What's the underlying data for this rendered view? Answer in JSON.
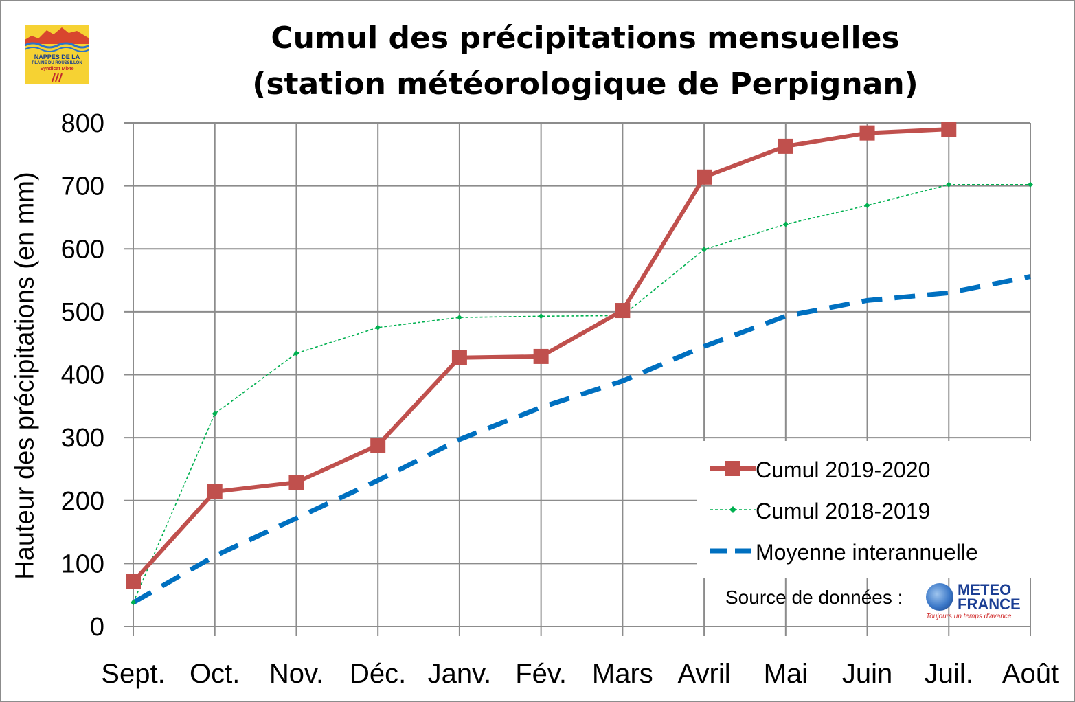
{
  "logo_nappes": {
    "line1": "NAPPES DE LA",
    "line2": "PLAINE DU ROUSSILLON",
    "line3": "Syndicat Mixte",
    "colors": {
      "background": "#f6d233",
      "blue": "#1a3e8c",
      "red": "#c0282d"
    }
  },
  "source": {
    "label": "Source de données :",
    "logo_word1": "METEO",
    "logo_word2": "FRANCE",
    "logo_tagline": "Toujours un temps d'avance"
  },
  "chart_data": {
    "type": "line",
    "title_line1": "Cumul des précipitations mensuelles",
    "title_line2": "(station météorologique de Perpignan)",
    "xlabel": "",
    "ylabel": "Hauteur des précipitations (en mm)",
    "categories": [
      "Sept.",
      "Oct.",
      "Nov.",
      "Déc.",
      "Janv.",
      "Fév.",
      "Mars",
      "Avril",
      "Mai",
      "Juin",
      "Juil.",
      "Août"
    ],
    "ylim": [
      0,
      800
    ],
    "yticks": [
      "0",
      "100",
      "200",
      "300",
      "400",
      "500",
      "600",
      "700",
      "800"
    ],
    "grid": true,
    "legend_position": "bottom-right",
    "series": [
      {
        "name": "Cumul 2019-2020",
        "color": "#c0504d",
        "style": "solid-thick",
        "marker": "square",
        "values": [
          71,
          214,
          229,
          288,
          427,
          429,
          502,
          714,
          763,
          784,
          790,
          null
        ]
      },
      {
        "name": "Cumul 2018-2019",
        "color": "#00b050",
        "style": "dashed-thin",
        "marker": "diamond",
        "values": [
          38,
          338,
          434,
          475,
          491,
          493,
          494,
          599,
          639,
          669,
          702,
          702
        ]
      },
      {
        "name": "Moyenne interannuelle",
        "color": "#0070c0",
        "style": "dashed-thick",
        "marker": "none",
        "values": [
          38,
          112,
          172,
          232,
          297,
          348,
          390,
          445,
          493,
          518,
          530,
          556
        ]
      }
    ]
  }
}
